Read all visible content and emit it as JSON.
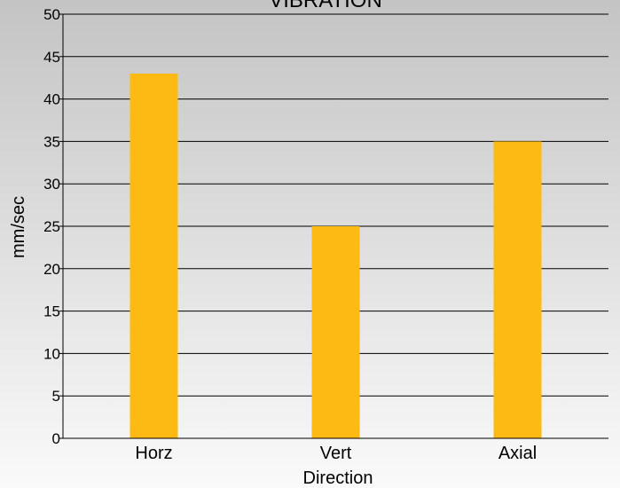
{
  "chart_data": {
    "type": "bar",
    "title": "VIBRATION",
    "xlabel": "Direction",
    "ylabel": "mm/sec",
    "categories": [
      "Horz",
      "Vert",
      "Axial"
    ],
    "values": [
      43,
      25,
      35
    ],
    "ylim": [
      0,
      50
    ],
    "yticks": [
      0,
      5,
      10,
      15,
      20,
      25,
      30,
      35,
      40,
      45,
      50
    ],
    "ytick_labels": [
      "0",
      "5",
      "10",
      "15",
      "20",
      "25",
      "30",
      "35",
      "40",
      "45",
      "50"
    ],
    "grid": true,
    "legend": "none",
    "colors": {
      "bar": "#FDBA12",
      "background_top": "#C4C4C4",
      "background_bottom": "#FAFAFA",
      "grid": "#000000"
    }
  }
}
